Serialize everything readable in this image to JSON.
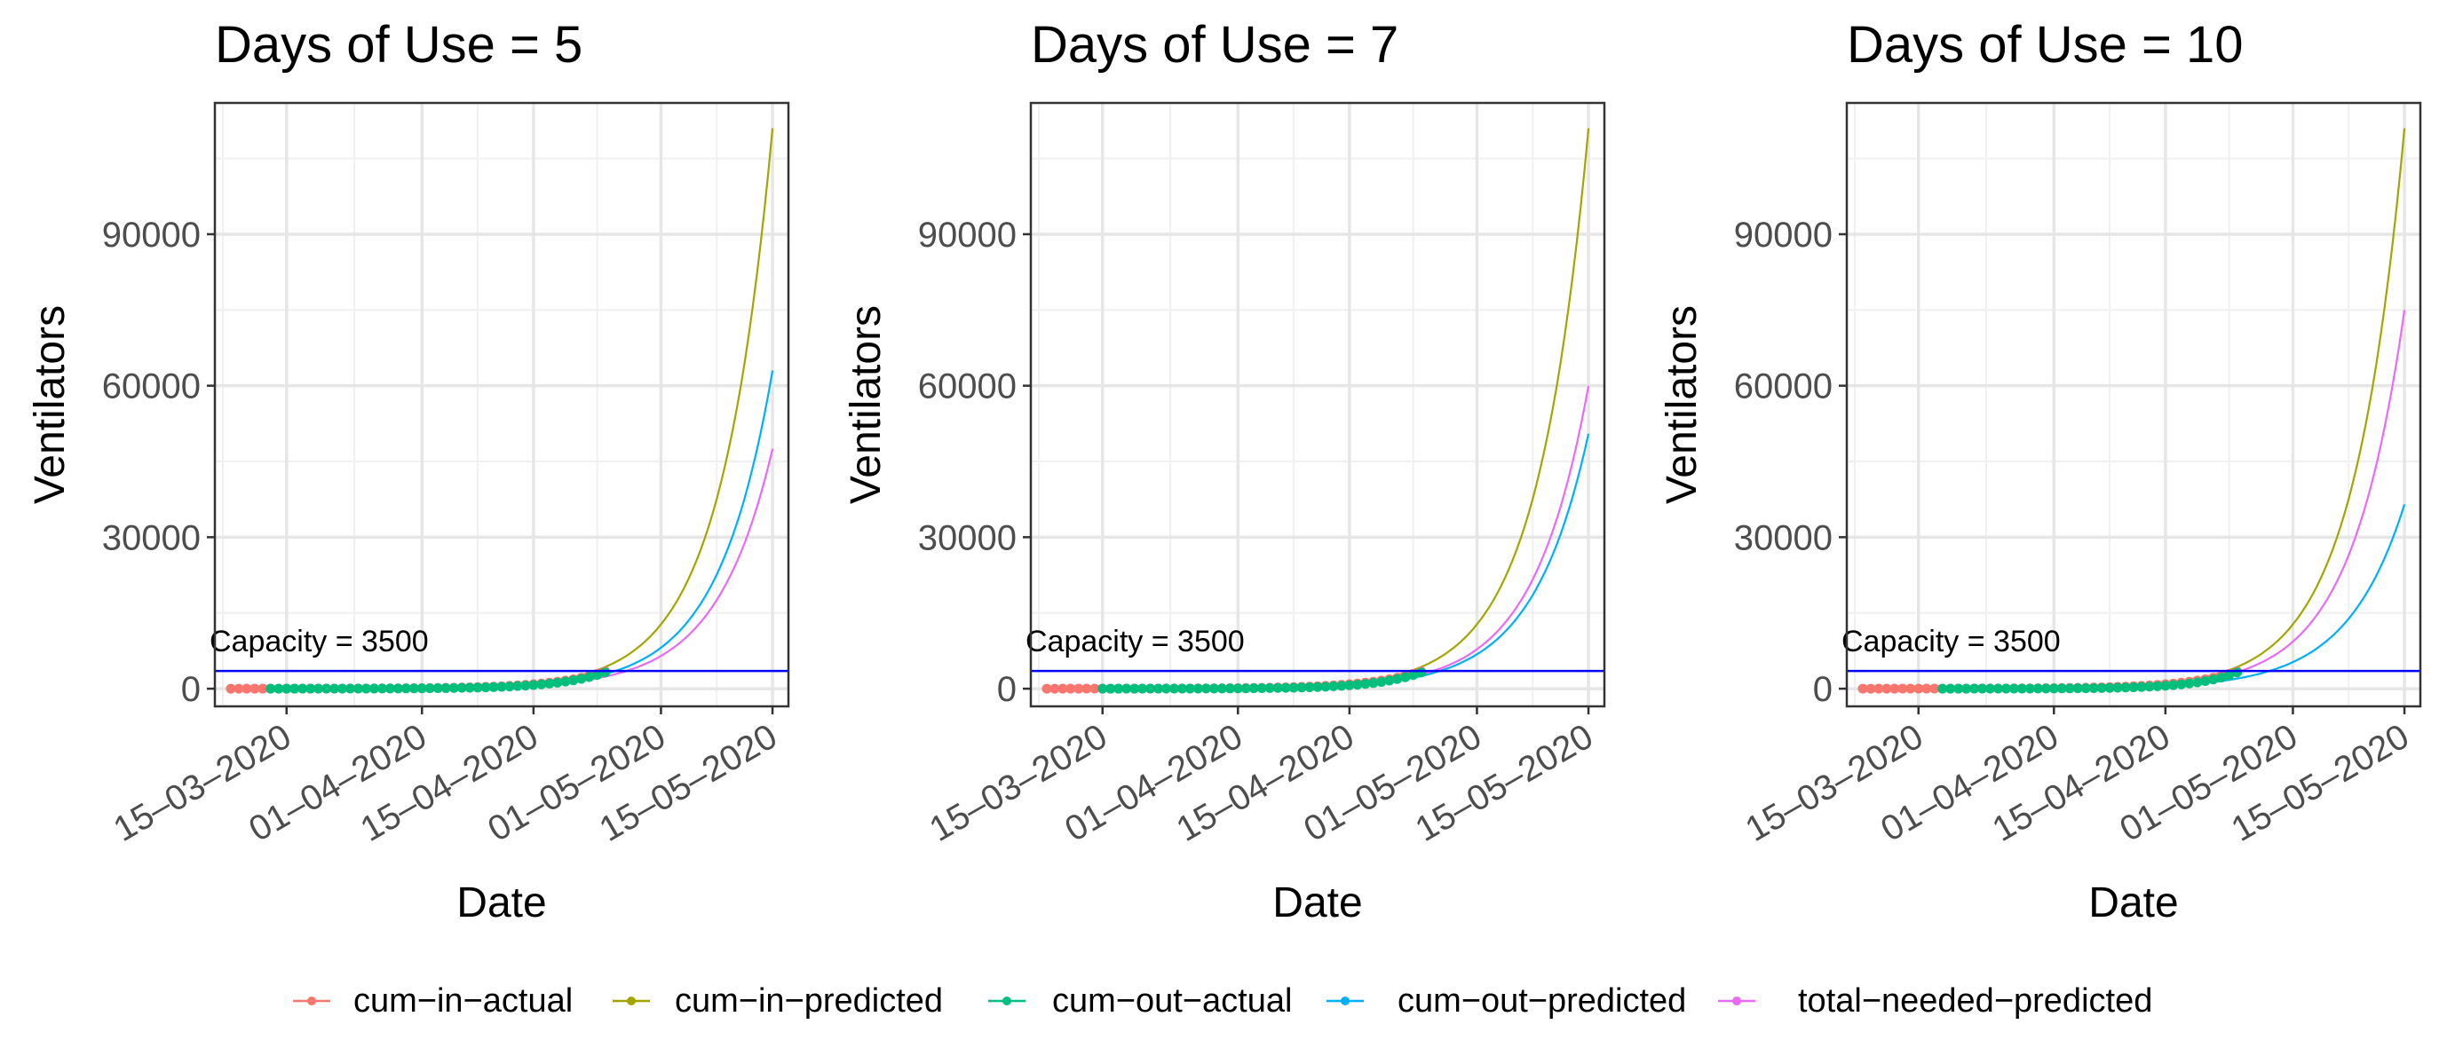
{
  "chart_data": [
    {
      "type": "line",
      "title": "Days of Use = 5",
      "xlabel": "Date",
      "ylabel": "Ventilators",
      "x_ticks": [
        "15–03–2020",
        "01–04–2020",
        "15–04–2020",
        "01–05–2020",
        "15–05–2020"
      ],
      "y_ticks": [
        "0",
        "30000",
        "60000",
        "90000"
      ],
      "capacity_label": "Capacity = 3500",
      "capacity": 3500,
      "actual_in_range": [
        "2020-03-08",
        "2020-04-24"
      ],
      "actual_out_range": [
        "2020-03-13",
        "2020-04-24"
      ],
      "predicted_end": {
        "cum_in": 111000,
        "cum_out": 63000,
        "total_needed": 47500
      },
      "grid": true
    },
    {
      "type": "line",
      "title": "Days of Use = 7",
      "xlabel": "Date",
      "ylabel": "Ventilators",
      "x_ticks": [
        "15–03–2020",
        "01–04–2020",
        "15–04–2020",
        "01–05–2020",
        "15–05–2020"
      ],
      "y_ticks": [
        "0",
        "30000",
        "60000",
        "90000"
      ],
      "capacity_label": "Capacity = 3500",
      "capacity": 3500,
      "actual_in_range": [
        "2020-03-08",
        "2020-04-24"
      ],
      "actual_out_range": [
        "2020-03-15",
        "2020-04-24"
      ],
      "predicted_end": {
        "cum_in": 111000,
        "cum_out": 50500,
        "total_needed": 60000
      },
      "grid": true
    },
    {
      "type": "line",
      "title": "Days of Use = 10",
      "xlabel": "Date",
      "ylabel": "Ventilators",
      "x_ticks": [
        "15–03–2020",
        "01–04–2020",
        "15–04–2020",
        "01–05–2020",
        "15–05–2020"
      ],
      "y_ticks": [
        "0",
        "30000",
        "60000",
        "90000"
      ],
      "capacity_label": "Capacity = 3500",
      "capacity": 3500,
      "actual_in_range": [
        "2020-03-08",
        "2020-04-24"
      ],
      "actual_out_range": [
        "2020-03-18",
        "2020-04-24"
      ],
      "predicted_end": {
        "cum_in": 111000,
        "cum_out": 36500,
        "total_needed": 75000
      },
      "grid": true
    }
  ],
  "shared": {
    "x_start": "2020-03-06",
    "x_end": "2020-05-17",
    "y_range": [
      -3500,
      116000
    ],
    "predicted_start": "2020-03-08",
    "predicted_end": "2020-05-15",
    "tick_dates": [
      "2020-03-15",
      "2020-04-01",
      "2020-04-15",
      "2020-05-01",
      "2020-05-15"
    ],
    "y_tick_values": [
      0,
      30000,
      60000,
      90000
    ],
    "capacity_color": "#0000ff"
  },
  "legend": {
    "placement": "bottom",
    "items": [
      {
        "name": "cum−in−actual",
        "color": "#F8766D"
      },
      {
        "name": "cum−in−predicted",
        "color": "#A3A500"
      },
      {
        "name": "cum−out−actual",
        "color": "#00BF7D"
      },
      {
        "name": "cum−out−predicted",
        "color": "#00B0F6"
      },
      {
        "name": "total−needed−predicted",
        "color": "#E76BF3"
      }
    ]
  }
}
